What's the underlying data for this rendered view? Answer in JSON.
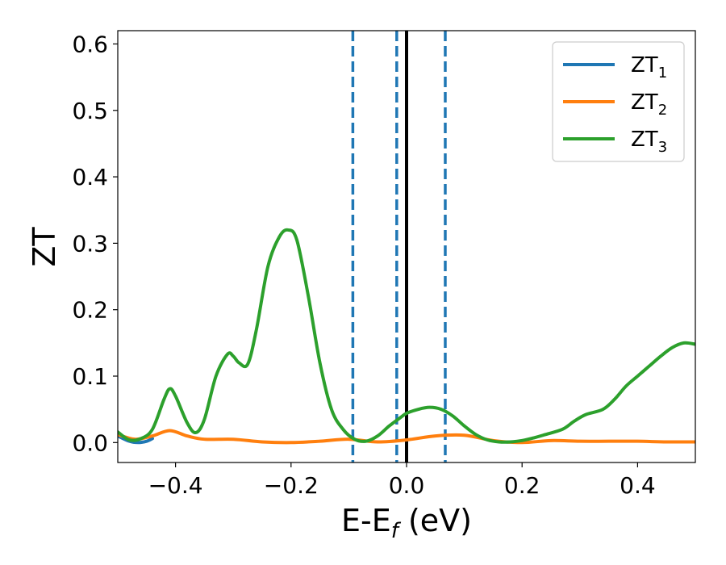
{
  "chart_data": {
    "type": "line",
    "title": "",
    "xlabel": "E-E",
    "xlabel_subscript": "f",
    "xlabel_unit": " (eV)",
    "ylabel": "ZT",
    "xlim": [
      -0.5,
      0.5
    ],
    "ylim": [
      -0.03,
      0.62
    ],
    "x_ticks": [
      -0.4,
      -0.2,
      0.0,
      0.2,
      0.4
    ],
    "x_tick_labels": [
      "−0.4",
      "−0.2",
      "0.0",
      "0.2",
      "0.4"
    ],
    "y_ticks": [
      0.0,
      0.1,
      0.2,
      0.3,
      0.4,
      0.5,
      0.6
    ],
    "y_tick_labels": [
      "0.0",
      "0.1",
      "0.2",
      "0.3",
      "0.4",
      "0.5",
      "0.6"
    ],
    "grid": false,
    "legend_position": "top-right",
    "vertical_lines": [
      {
        "x": -0.093,
        "style": "dashed",
        "color": "#1f77b4"
      },
      {
        "x": -0.017,
        "style": "dashed",
        "color": "#1f77b4"
      },
      {
        "x": 0.0,
        "style": "solid",
        "color": "#000000"
      },
      {
        "x": 0.067,
        "style": "dashed",
        "color": "#1f77b4"
      }
    ],
    "series": [
      {
        "name": "ZT",
        "name_subscript": "1",
        "color": "#1f77b4",
        "x": [
          -0.5,
          -0.48,
          -0.465,
          -0.45,
          -0.44
        ],
        "y": [
          0.01,
          0.002,
          0.0,
          0.002,
          0.006
        ]
      },
      {
        "name": "ZT",
        "name_subscript": "2",
        "color": "#ff7f0e",
        "x": [
          -0.5,
          -0.47,
          -0.44,
          -0.41,
          -0.38,
          -0.35,
          -0.3,
          -0.25,
          -0.2,
          -0.15,
          -0.1,
          -0.05,
          0.0,
          0.05,
          0.1,
          0.15,
          0.2,
          0.25,
          0.3,
          0.35,
          0.4,
          0.45,
          0.5
        ],
        "y": [
          0.012,
          0.005,
          0.01,
          0.018,
          0.01,
          0.005,
          0.005,
          0.001,
          0.0,
          0.002,
          0.005,
          0.001,
          0.004,
          0.01,
          0.011,
          0.003,
          0.0,
          0.003,
          0.002,
          0.002,
          0.002,
          0.001,
          0.001
        ]
      },
      {
        "name": "ZT",
        "name_subscript": "3",
        "color": "#2ca02c",
        "x": [
          -0.5,
          -0.48,
          -0.46,
          -0.44,
          -0.42,
          -0.41,
          -0.4,
          -0.38,
          -0.365,
          -0.35,
          -0.33,
          -0.31,
          -0.3,
          -0.29,
          -0.275,
          -0.26,
          -0.24,
          -0.22,
          -0.205,
          -0.19,
          -0.17,
          -0.15,
          -0.13,
          -0.11,
          -0.09,
          -0.07,
          -0.05,
          -0.03,
          -0.01,
          0.0,
          0.02,
          0.04,
          0.06,
          0.08,
          0.1,
          0.12,
          0.14,
          0.16,
          0.18,
          0.2,
          0.22,
          0.24,
          0.27,
          0.29,
          0.31,
          0.34,
          0.36,
          0.38,
          0.4,
          0.42,
          0.44,
          0.46,
          0.48,
          0.5
        ],
        "y": [
          0.016,
          0.004,
          0.006,
          0.02,
          0.065,
          0.081,
          0.07,
          0.03,
          0.015,
          0.035,
          0.1,
          0.133,
          0.13,
          0.12,
          0.118,
          0.17,
          0.265,
          0.31,
          0.32,
          0.305,
          0.22,
          0.12,
          0.05,
          0.02,
          0.005,
          0.002,
          0.01,
          0.025,
          0.038,
          0.044,
          0.05,
          0.053,
          0.05,
          0.04,
          0.025,
          0.012,
          0.004,
          0.001,
          0.001,
          0.003,
          0.007,
          0.012,
          0.02,
          0.032,
          0.042,
          0.05,
          0.065,
          0.085,
          0.1,
          0.115,
          0.13,
          0.143,
          0.15,
          0.148
        ]
      }
    ]
  }
}
